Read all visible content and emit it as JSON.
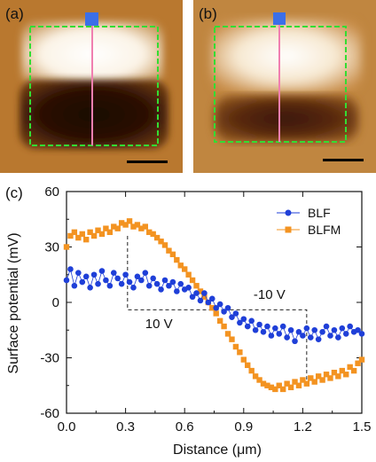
{
  "panels": {
    "a": {
      "label": "(a)"
    },
    "b": {
      "label": "(b)"
    },
    "c": {
      "label": "(c)"
    }
  },
  "colors": {
    "blf": "#1f3fd8",
    "blfm": "#f39321",
    "scan_box": "#33dd33",
    "line_profile": "#f07fb0",
    "marker": "#3b6fe8"
  },
  "chart_data": {
    "type": "scatter",
    "title": "",
    "xlabel": "Distance (μm)",
    "ylabel": "Surface potential (mV)",
    "xlim": [
      0.0,
      1.5
    ],
    "ylim": [
      -60,
      60
    ],
    "xticks": [
      "0.0",
      "0.3",
      "0.6",
      "0.9",
      "1.2",
      "1.5"
    ],
    "yticks": [
      "-60",
      "-30",
      "0",
      "30",
      "60"
    ],
    "legend": {
      "placement": "top-right"
    },
    "annotations": {
      "bias_positive": "10 V",
      "bias_negative": "-10 V"
    },
    "series": [
      {
        "name": "BLF",
        "marker": "circle",
        "points": [
          [
            0.0,
            12
          ],
          [
            0.02,
            18
          ],
          [
            0.04,
            9
          ],
          [
            0.06,
            16
          ],
          [
            0.08,
            11
          ],
          [
            0.1,
            14
          ],
          [
            0.12,
            8
          ],
          [
            0.14,
            15
          ],
          [
            0.16,
            10
          ],
          [
            0.18,
            17
          ],
          [
            0.2,
            12
          ],
          [
            0.22,
            9
          ],
          [
            0.24,
            16
          ],
          [
            0.26,
            13
          ],
          [
            0.28,
            10
          ],
          [
            0.3,
            15
          ],
          [
            0.32,
            11
          ],
          [
            0.34,
            8
          ],
          [
            0.36,
            14
          ],
          [
            0.38,
            12
          ],
          [
            0.4,
            16
          ],
          [
            0.42,
            9
          ],
          [
            0.44,
            13
          ],
          [
            0.46,
            10
          ],
          [
            0.48,
            7
          ],
          [
            0.5,
            12
          ],
          [
            0.52,
            9
          ],
          [
            0.54,
            11
          ],
          [
            0.56,
            6
          ],
          [
            0.58,
            10
          ],
          [
            0.6,
            7
          ],
          [
            0.62,
            8
          ],
          [
            0.64,
            3
          ],
          [
            0.66,
            5
          ],
          [
            0.68,
            1
          ],
          [
            0.7,
            5
          ],
          [
            0.72,
            0
          ],
          [
            0.74,
            2
          ],
          [
            0.76,
            -3
          ],
          [
            0.78,
            -1
          ],
          [
            0.8,
            -5
          ],
          [
            0.82,
            -3
          ],
          [
            0.84,
            -8
          ],
          [
            0.86,
            -6
          ],
          [
            0.88,
            -11
          ],
          [
            0.9,
            -9
          ],
          [
            0.92,
            -13
          ],
          [
            0.94,
            -10
          ],
          [
            0.96,
            -15
          ],
          [
            0.98,
            -12
          ],
          [
            1.0,
            -16
          ],
          [
            1.02,
            -13
          ],
          [
            1.04,
            -18
          ],
          [
            1.06,
            -14
          ],
          [
            1.08,
            -17
          ],
          [
            1.1,
            -13
          ],
          [
            1.12,
            -19
          ],
          [
            1.14,
            -15
          ],
          [
            1.16,
            -21
          ],
          [
            1.18,
            -16
          ],
          [
            1.2,
            -18
          ],
          [
            1.22,
            -14
          ],
          [
            1.24,
            -19
          ],
          [
            1.26,
            -15
          ],
          [
            1.28,
            -20
          ],
          [
            1.3,
            -16
          ],
          [
            1.32,
            -13
          ],
          [
            1.34,
            -18
          ],
          [
            1.36,
            -15
          ],
          [
            1.38,
            -19
          ],
          [
            1.4,
            -14
          ],
          [
            1.42,
            -17
          ],
          [
            1.44,
            -13
          ],
          [
            1.46,
            -16
          ],
          [
            1.48,
            -15
          ],
          [
            1.5,
            -17
          ]
        ]
      },
      {
        "name": "BLFM",
        "marker": "square",
        "points": [
          [
            0.0,
            30
          ],
          [
            0.02,
            36
          ],
          [
            0.04,
            38
          ],
          [
            0.06,
            35
          ],
          [
            0.08,
            37
          ],
          [
            0.1,
            34
          ],
          [
            0.12,
            38
          ],
          [
            0.14,
            36
          ],
          [
            0.16,
            39
          ],
          [
            0.18,
            37
          ],
          [
            0.2,
            40
          ],
          [
            0.22,
            38
          ],
          [
            0.24,
            41
          ],
          [
            0.26,
            40
          ],
          [
            0.28,
            43
          ],
          [
            0.3,
            42
          ],
          [
            0.32,
            44
          ],
          [
            0.34,
            41
          ],
          [
            0.36,
            42
          ],
          [
            0.38,
            40
          ],
          [
            0.4,
            41
          ],
          [
            0.42,
            38
          ],
          [
            0.44,
            37
          ],
          [
            0.46,
            35
          ],
          [
            0.48,
            33
          ],
          [
            0.5,
            31
          ],
          [
            0.52,
            28
          ],
          [
            0.54,
            26
          ],
          [
            0.56,
            23
          ],
          [
            0.58,
            20
          ],
          [
            0.6,
            18
          ],
          [
            0.62,
            15
          ],
          [
            0.64,
            12
          ],
          [
            0.66,
            9
          ],
          [
            0.68,
            6
          ],
          [
            0.7,
            3
          ],
          [
            0.72,
            0
          ],
          [
            0.74,
            -3
          ],
          [
            0.76,
            -6
          ],
          [
            0.78,
            -10
          ],
          [
            0.8,
            -13
          ],
          [
            0.82,
            -17
          ],
          [
            0.84,
            -20
          ],
          [
            0.86,
            -24
          ],
          [
            0.88,
            -27
          ],
          [
            0.9,
            -31
          ],
          [
            0.92,
            -34
          ],
          [
            0.94,
            -37
          ],
          [
            0.96,
            -40
          ],
          [
            0.98,
            -42
          ],
          [
            1.0,
            -44
          ],
          [
            1.02,
            -45
          ],
          [
            1.04,
            -46
          ],
          [
            1.06,
            -47
          ],
          [
            1.08,
            -45
          ],
          [
            1.1,
            -47
          ],
          [
            1.12,
            -44
          ],
          [
            1.14,
            -46
          ],
          [
            1.16,
            -43
          ],
          [
            1.18,
            -45
          ],
          [
            1.2,
            -42
          ],
          [
            1.22,
            -44
          ],
          [
            1.24,
            -41
          ],
          [
            1.26,
            -43
          ],
          [
            1.28,
            -40
          ],
          [
            1.3,
            -42
          ],
          [
            1.32,
            -39
          ],
          [
            1.34,
            -41
          ],
          [
            1.36,
            -38
          ],
          [
            1.38,
            -40
          ],
          [
            1.4,
            -37
          ],
          [
            1.42,
            -39
          ],
          [
            1.44,
            -35
          ],
          [
            1.46,
            -37
          ],
          [
            1.48,
            -33
          ],
          [
            1.5,
            -31
          ]
        ]
      }
    ]
  }
}
